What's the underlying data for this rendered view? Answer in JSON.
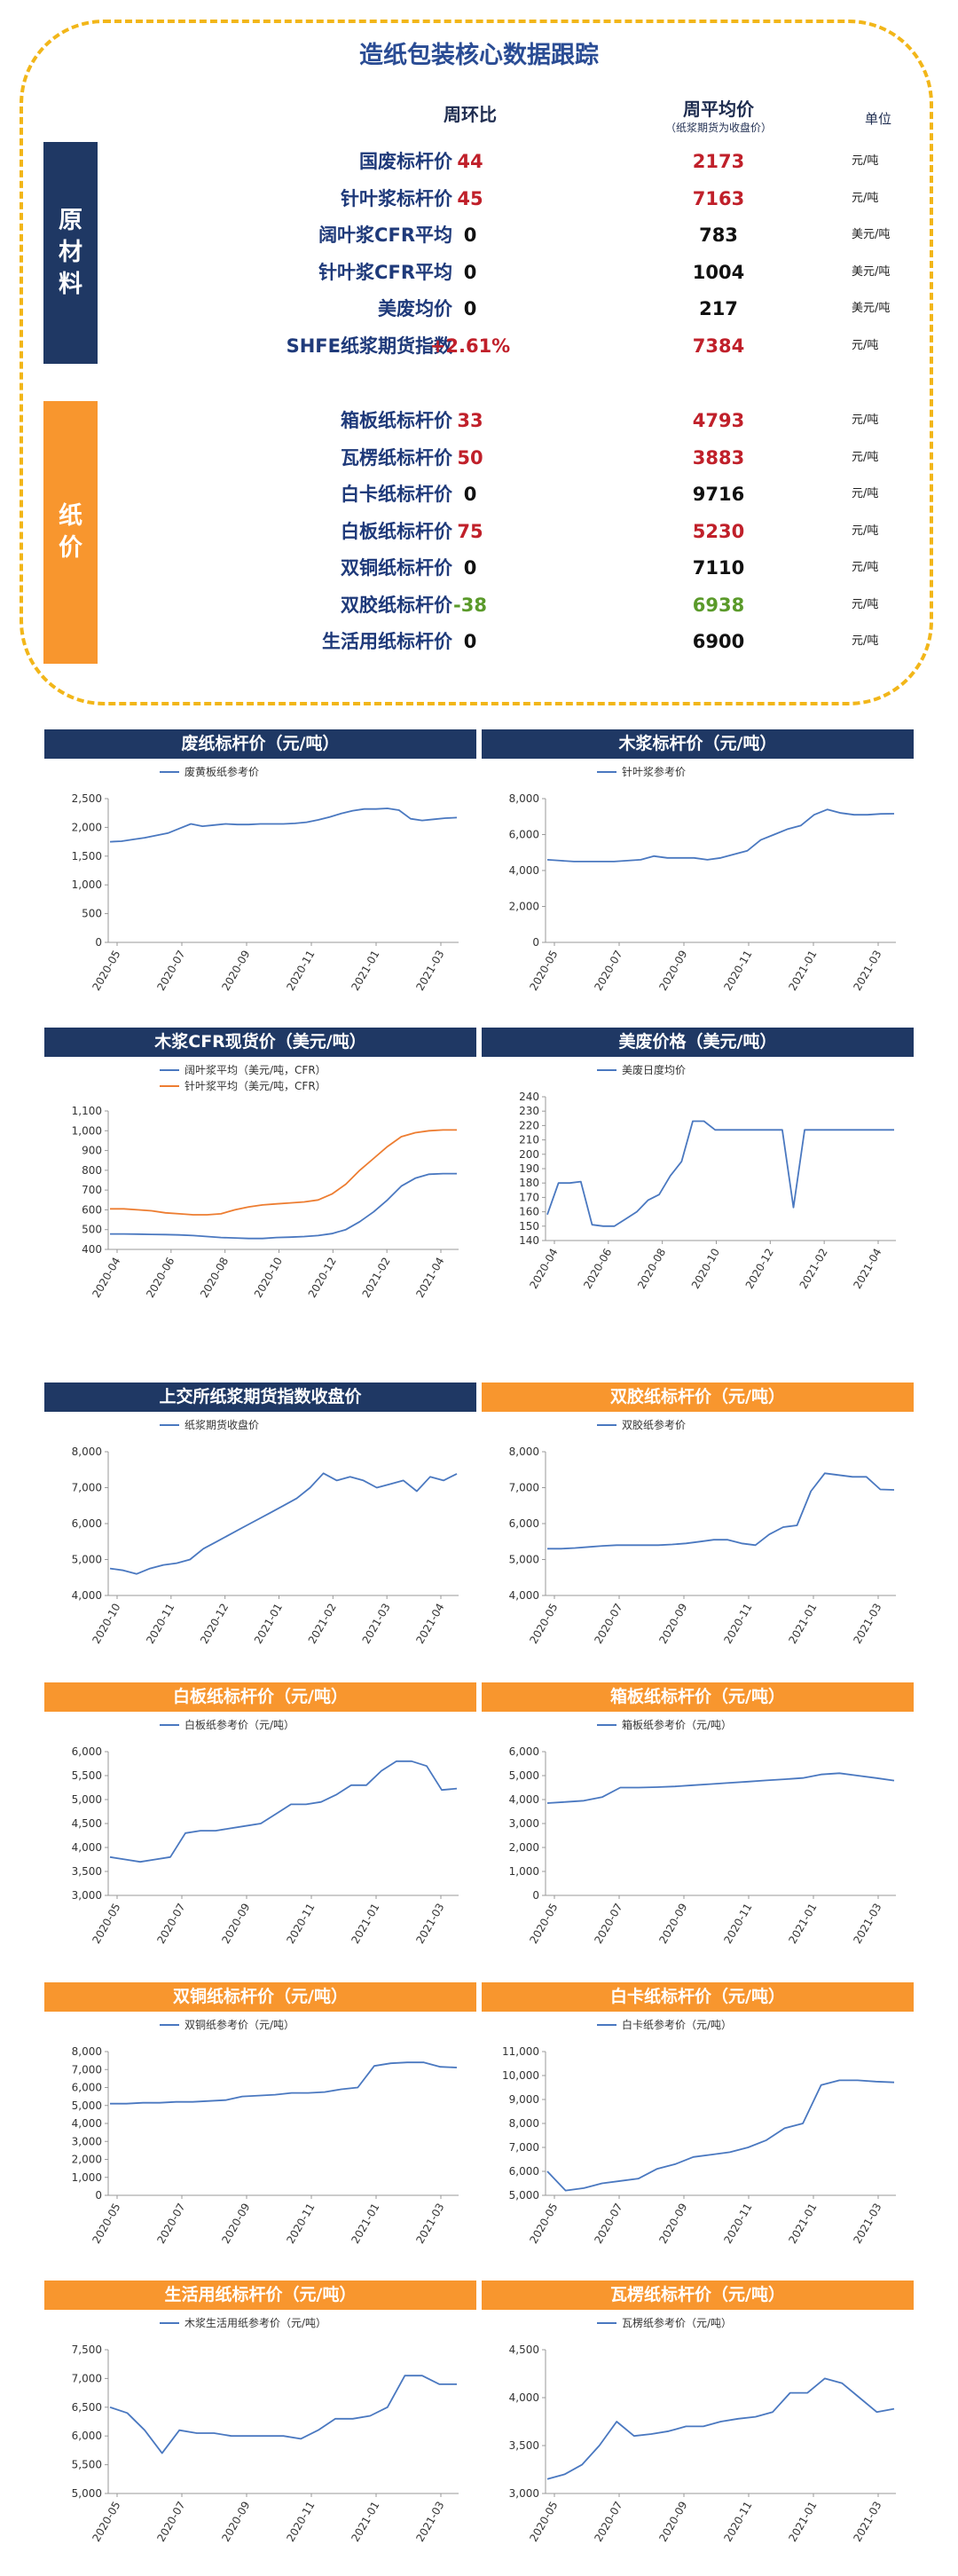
{
  "header": {
    "title": "造纸包装核心数据跟踪",
    "col_change": "周环比",
    "col_avg": "周平均价",
    "col_avg_note": "（纸浆期货为收盘价）",
    "col_unit": "单位"
  },
  "groups": [
    {
      "label": "原材料",
      "chars": [
        "原",
        "材",
        "料"
      ],
      "color": "#1f3864",
      "rows": [
        {
          "name": "国废标杆价",
          "change": "44",
          "avg": "2173",
          "unit": "元/吨",
          "tone": "red"
        },
        {
          "name": "针叶浆标杆价",
          "change": "45",
          "avg": "7163",
          "unit": "元/吨",
          "tone": "red"
        },
        {
          "name": "阔叶浆CFR平均",
          "change": "0",
          "avg": "783",
          "unit": "美元/吨",
          "tone": "blk2"
        },
        {
          "name": "针叶浆CFR平均",
          "change": "0",
          "avg": "1004",
          "unit": "美元/吨",
          "tone": "blk2"
        },
        {
          "name": "美废均价",
          "change": "0",
          "avg": "217",
          "unit": "美元/吨",
          "tone": "blk2"
        },
        {
          "name": "SHFE纸浆期货指数",
          "change": "+2.61%",
          "avg": "7384",
          "unit": "元/吨",
          "tone": "red"
        }
      ]
    },
    {
      "label": "纸价",
      "chars": [
        "纸",
        "价"
      ],
      "color": "#f8962e",
      "rows": [
        {
          "name": "箱板纸标杆价",
          "change": "33",
          "avg": "4793",
          "unit": "元/吨",
          "tone": "red"
        },
        {
          "name": "瓦楞纸标杆价",
          "change": "50",
          "avg": "3883",
          "unit": "元/吨",
          "tone": "red"
        },
        {
          "name": "白卡纸标杆价",
          "change": "0",
          "avg": "9716",
          "unit": "元/吨",
          "tone": "blk2"
        },
        {
          "name": "白板纸标杆价",
          "change": "75",
          "avg": "5230",
          "unit": "元/吨",
          "tone": "red"
        },
        {
          "name": "双铜纸标杆价",
          "change": "0",
          "avg": "7110",
          "unit": "元/吨",
          "tone": "blk2"
        },
        {
          "name": "双胶纸标杆价",
          "change": "-38",
          "avg": "6938",
          "unit": "元/吨",
          "tone": "grn"
        },
        {
          "name": "生活用纸标杆价",
          "change": "0",
          "avg": "6900",
          "unit": "元/吨",
          "tone": "blk2"
        }
      ]
    }
  ],
  "chart_data": [
    {
      "type": "line",
      "title": "废纸标杆价（元/吨）",
      "banner": "#1f3864",
      "legend": [
        "废黄板纸参考价"
      ],
      "ylim": [
        0,
        2500
      ],
      "yticks": [
        0,
        500,
        1000,
        1500,
        2000,
        2500
      ],
      "xticks": [
        "2020-05",
        "2020-07",
        "2020-09",
        "2020-11",
        "2021-01",
        "2021-03"
      ],
      "series": [
        {
          "name": "废黄板纸参考价",
          "color": "#4a78c0",
          "values": [
            1750,
            1760,
            1790,
            1820,
            1860,
            1900,
            1980,
            2060,
            2020,
            2040,
            2060,
            2050,
            2050,
            2060,
            2060,
            2060,
            2070,
            2090,
            2130,
            2180,
            2240,
            2290,
            2320,
            2320,
            2330,
            2300,
            2150,
            2120,
            2140,
            2160,
            2170
          ]
        }
      ]
    },
    {
      "type": "line",
      "title": "木浆标杆价（元/吨）",
      "banner": "#1f3864",
      "legend": [
        "针叶浆参考价"
      ],
      "ylim": [
        0,
        8000
      ],
      "yticks": [
        0,
        2000,
        4000,
        6000,
        8000
      ],
      "xticks": [
        "2020-05",
        "2020-07",
        "2020-09",
        "2020-11",
        "2021-01",
        "2021-03"
      ],
      "series": [
        {
          "name": "针叶浆参考价",
          "color": "#4a78c0",
          "values": [
            4600,
            4550,
            4500,
            4500,
            4500,
            4500,
            4550,
            4600,
            4800,
            4700,
            4700,
            4700,
            4600,
            4700,
            4900,
            5100,
            5700,
            6000,
            6300,
            6500,
            7100,
            7400,
            7200,
            7100,
            7100,
            7150,
            7160
          ]
        }
      ]
    },
    {
      "type": "line",
      "title": "木浆CFR现货价（美元/吨）",
      "banner": "#1f3864",
      "legend": [
        "阔叶浆平均（美元/吨，CFR）",
        "针叶浆平均（美元/吨，CFR）"
      ],
      "ylim": [
        400,
        1100
      ],
      "yticks": [
        400,
        500,
        600,
        700,
        800,
        900,
        1000,
        1100
      ],
      "xticks": [
        "2020-04",
        "2020-06",
        "2020-08",
        "2020-10",
        "2020-12",
        "2021-02",
        "2021-04"
      ],
      "series": [
        {
          "name": "阔叶浆平均（美元/吨，CFR）",
          "color": "#4a78c0",
          "values": [
            478,
            478,
            477,
            476,
            475,
            473,
            470,
            465,
            460,
            458,
            455,
            455,
            460,
            462,
            465,
            470,
            480,
            500,
            540,
            590,
            650,
            720,
            760,
            780,
            783,
            783
          ]
        },
        {
          "name": "针叶浆平均（美元/吨，CFR）",
          "color": "#ed7d31",
          "values": [
            605,
            605,
            600,
            595,
            585,
            580,
            575,
            575,
            580,
            600,
            615,
            625,
            630,
            635,
            640,
            650,
            680,
            730,
            800,
            860,
            920,
            970,
            990,
            1000,
            1004,
            1004
          ]
        }
      ]
    },
    {
      "type": "line",
      "title": "美废价格（美元/吨）",
      "banner": "#1f3864",
      "legend": [
        "美废日度均价"
      ],
      "ylim": [
        140,
        240
      ],
      "yticks": [
        140,
        150,
        160,
        170,
        180,
        190,
        200,
        210,
        220,
        230,
        240
      ],
      "xticks": [
        "2020-04",
        "2020-06",
        "2020-08",
        "2020-10",
        "2020-12",
        "2021-02",
        "2021-04"
      ],
      "series": [
        {
          "name": "美废日度均价",
          "color": "#4a78c0",
          "values": [
            158,
            180,
            180,
            181,
            151,
            150,
            150,
            155,
            160,
            168,
            172,
            185,
            195,
            223,
            223,
            217,
            217,
            217,
            217,
            217,
            217,
            217,
            163,
            217,
            217,
            217,
            217,
            217,
            217,
            217,
            217,
            217
          ]
        }
      ]
    },
    {
      "type": "line",
      "title": "上交所纸浆期货指数收盘价",
      "banner": "#1f3864",
      "legend": [
        "纸浆期货收盘价"
      ],
      "ylim": [
        4000,
        8000
      ],
      "yticks": [
        4000,
        5000,
        6000,
        7000,
        8000
      ],
      "xticks": [
        "2020-10",
        "2020-11",
        "2020-12",
        "2021-01",
        "2021-02",
        "2021-03",
        "2021-04"
      ],
      "series": [
        {
          "name": "纸浆期货收盘价",
          "color": "#4a78c0",
          "values": [
            4750,
            4700,
            4600,
            4750,
            4850,
            4900,
            5000,
            5300,
            5500,
            5700,
            5900,
            6100,
            6300,
            6500,
            6700,
            7000,
            7400,
            7200,
            7300,
            7200,
            7000,
            7100,
            7200,
            6900,
            7300,
            7200,
            7384
          ]
        }
      ]
    },
    {
      "type": "line",
      "title": "双胶纸标杆价（元/吨）",
      "banner": "#f8962e",
      "legend": [
        "双胶纸参考价"
      ],
      "ylim": [
        4000,
        8000
      ],
      "yticks": [
        4000,
        5000,
        6000,
        7000,
        8000
      ],
      "xticks": [
        "2020-05",
        "2020-07",
        "2020-09",
        "2020-11",
        "2021-01",
        "2021-03"
      ],
      "series": [
        {
          "name": "双胶纸参考价",
          "color": "#4a78c0",
          "values": [
            5300,
            5300,
            5320,
            5350,
            5380,
            5400,
            5400,
            5400,
            5400,
            5420,
            5450,
            5500,
            5550,
            5550,
            5450,
            5400,
            5700,
            5900,
            5950,
            6900,
            7400,
            7350,
            7300,
            7300,
            6950,
            6938
          ]
        }
      ]
    },
    {
      "type": "line",
      "title": "白板纸标杆价（元/吨）",
      "banner": "#f8962e",
      "legend": [
        "白板纸参考价（元/吨）"
      ],
      "ylim": [
        3000,
        6000
      ],
      "yticks": [
        3000,
        3500,
        4000,
        4500,
        5000,
        5500,
        6000
      ],
      "xticks": [
        "2020-05",
        "2020-07",
        "2020-09",
        "2020-11",
        "2021-01",
        "2021-03"
      ],
      "series": [
        {
          "name": "白板纸参考价（元/吨）",
          "color": "#4a78c0",
          "values": [
            3800,
            3750,
            3700,
            3750,
            3800,
            4300,
            4350,
            4350,
            4400,
            4450,
            4500,
            4700,
            4900,
            4900,
            4950,
            5100,
            5300,
            5300,
            5600,
            5800,
            5800,
            5700,
            5200,
            5230
          ]
        }
      ]
    },
    {
      "type": "line",
      "title": "箱板纸标杆价（元/吨）",
      "banner": "#f8962e",
      "legend": [
        "箱板纸参考价（元/吨）"
      ],
      "ylim": [
        0,
        6000
      ],
      "yticks": [
        0,
        1000,
        2000,
        3000,
        4000,
        5000,
        6000
      ],
      "xticks": [
        "2020-05",
        "2020-07",
        "2020-09",
        "2020-11",
        "2021-01",
        "2021-03"
      ],
      "series": [
        {
          "name": "箱板纸参考价（元/吨）",
          "color": "#4a78c0",
          "values": [
            3850,
            3900,
            3950,
            4100,
            4500,
            4500,
            4520,
            4550,
            4600,
            4650,
            4700,
            4750,
            4800,
            4850,
            4900,
            5050,
            5100,
            5000,
            4900,
            4793
          ]
        }
      ]
    },
    {
      "type": "line",
      "title": "双铜纸标杆价（元/吨）",
      "banner": "#f8962e",
      "legend": [
        "双铜纸参考价（元/吨）"
      ],
      "ylim": [
        0,
        8000
      ],
      "yticks": [
        0,
        1000,
        2000,
        3000,
        4000,
        5000,
        6000,
        7000,
        8000
      ],
      "xticks": [
        "2020-05",
        "2020-07",
        "2020-09",
        "2020-11",
        "2021-01",
        "2021-03"
      ],
      "series": [
        {
          "name": "双铜纸参考价（元/吨）",
          "color": "#4a78c0",
          "values": [
            5100,
            5100,
            5150,
            5150,
            5200,
            5200,
            5250,
            5300,
            5500,
            5550,
            5600,
            5700,
            5700,
            5750,
            5900,
            6000,
            7200,
            7350,
            7400,
            7400,
            7150,
            7110
          ]
        }
      ]
    },
    {
      "type": "line",
      "title": "白卡纸标杆价（元/吨）",
      "banner": "#f8962e",
      "legend": [
        "白卡纸参考价（元/吨）"
      ],
      "ylim": [
        5000,
        11000
      ],
      "yticks": [
        5000,
        6000,
        7000,
        8000,
        9000,
        10000,
        11000
      ],
      "xticks": [
        "2020-05",
        "2020-07",
        "2020-09",
        "2020-11",
        "2021-01",
        "2021-03"
      ],
      "series": [
        {
          "name": "白卡纸参考价（元/吨）",
          "color": "#4a78c0",
          "values": [
            6000,
            5200,
            5300,
            5500,
            5600,
            5700,
            6100,
            6300,
            6600,
            6700,
            6800,
            7000,
            7300,
            7800,
            8000,
            9600,
            9800,
            9800,
            9750,
            9716
          ]
        }
      ]
    },
    {
      "type": "line",
      "title": "生活用纸标杆价（元/吨）",
      "banner": "#f8962e",
      "legend": [
        "木浆生活用纸参考价（元/吨）"
      ],
      "ylim": [
        5000,
        7500
      ],
      "yticks": [
        5000,
        5500,
        6000,
        6500,
        7000,
        7500
      ],
      "xticks": [
        "2020-05",
        "2020-07",
        "2020-09",
        "2020-11",
        "2021-01",
        "2021-03"
      ],
      "series": [
        {
          "name": "木浆生活用纸参考价（元/吨）",
          "color": "#4a78c0",
          "values": [
            6500,
            6400,
            6100,
            5700,
            6100,
            6050,
            6050,
            6000,
            6000,
            6000,
            6000,
            5950,
            6100,
            6300,
            6300,
            6350,
            6500,
            7050,
            7050,
            6900,
            6900
          ]
        }
      ]
    },
    {
      "type": "line",
      "title": "瓦楞纸标杆价（元/吨）",
      "banner": "#f8962e",
      "legend": [
        "瓦楞纸参考价（元/吨）"
      ],
      "ylim": [
        3000,
        4500
      ],
      "yticks": [
        3000,
        3500,
        4000,
        4500
      ],
      "xticks": [
        "2020-05",
        "2020-07",
        "2020-09",
        "2020-11",
        "2021-01",
        "2021-03"
      ],
      "series": [
        {
          "name": "瓦楞纸参考价（元/吨）",
          "color": "#4a78c0",
          "values": [
            3150,
            3200,
            3300,
            3500,
            3750,
            3600,
            3620,
            3650,
            3700,
            3700,
            3750,
            3780,
            3800,
            3850,
            4050,
            4050,
            4200,
            4150,
            4000,
            3850,
            3883
          ]
        }
      ]
    }
  ]
}
